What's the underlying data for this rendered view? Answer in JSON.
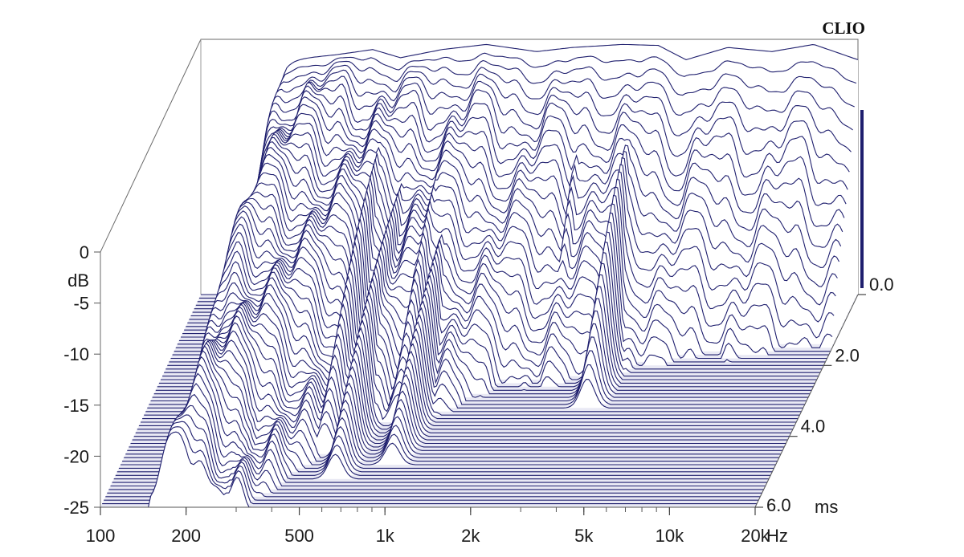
{
  "chart_data": {
    "type": "waterfall-3d",
    "brand_label": "CLIO",
    "x_axis": {
      "scale": "log",
      "range": [
        100,
        20000
      ],
      "unit_label": "Hz",
      "ticks": [
        {
          "value": 100,
          "label": "100"
        },
        {
          "value": 200,
          "label": "200"
        },
        {
          "value": 500,
          "label": "500"
        },
        {
          "value": 1000,
          "label": "1k"
        },
        {
          "value": 2000,
          "label": "2k"
        },
        {
          "value": 5000,
          "label": "5k"
        },
        {
          "value": 10000,
          "label": "10k"
        },
        {
          "value": 20000,
          "label": "20k"
        }
      ]
    },
    "y_axis": {
      "unit_label": "dB",
      "range": [
        -25,
        0
      ],
      "ticks": [
        {
          "value": 0,
          "label": "0"
        },
        {
          "value": -5,
          "label": "-5"
        },
        {
          "value": -10,
          "label": "-10"
        },
        {
          "value": -15,
          "label": "-15"
        },
        {
          "value": -20,
          "label": "-20"
        },
        {
          "value": -25,
          "label": "-25"
        }
      ]
    },
    "time_axis": {
      "unit_label": "ms",
      "range": [
        0,
        6
      ],
      "ticks": [
        {
          "value": 0,
          "label": "0.0"
        },
        {
          "value": 2,
          "label": "2.0"
        },
        {
          "value": 4,
          "label": "4.0"
        },
        {
          "value": 6,
          "label": "6.0"
        }
      ]
    },
    "slices": 60,
    "line_color": "#1f1f6e",
    "initial_response_db": [
      [
        150,
        -6
      ],
      [
        200,
        -2
      ],
      [
        300,
        -1.5
      ],
      [
        400,
        -1
      ],
      [
        500,
        -1.8
      ],
      [
        700,
        -1
      ],
      [
        1000,
        -0.5
      ],
      [
        1500,
        -1.2
      ],
      [
        2000,
        -0.8
      ],
      [
        3000,
        -0.5
      ],
      [
        4000,
        -0.6
      ],
      [
        5000,
        -2
      ],
      [
        7000,
        -0.8
      ],
      [
        10000,
        -1.2
      ],
      [
        14000,
        -0.5
      ],
      [
        20000,
        -2
      ]
    ],
    "resonances": [
      {
        "freq_hz": 280,
        "level_db": -15.5,
        "end_ms": 6.0
      },
      {
        "freq_hz": 500,
        "level_db": -5,
        "end_ms": 4.5
      },
      {
        "freq_hz": 600,
        "level_db": -9,
        "end_ms": 5.2
      },
      {
        "freq_hz": 800,
        "level_db": -7,
        "end_ms": 3.6
      },
      {
        "freq_hz": 900,
        "level_db": -11,
        "end_ms": 4.8
      },
      {
        "freq_hz": 2300,
        "level_db": -6.5,
        "end_ms": 2.0
      },
      {
        "freq_hz": 3500,
        "level_db": -6,
        "end_ms": 3.2
      },
      {
        "freq_hz": 10500,
        "level_db": -7,
        "end_ms": 0.6
      },
      {
        "freq_hz": 18000,
        "level_db": -8,
        "end_ms": 0.5
      }
    ]
  }
}
